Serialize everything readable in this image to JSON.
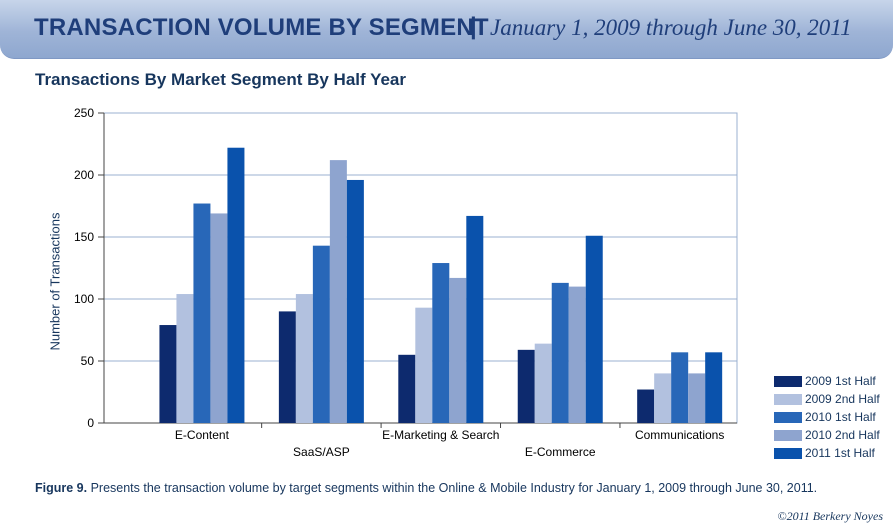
{
  "header": {
    "title": "TRANSACTION VOLUME BY SEGMENT",
    "separator": "|",
    "subtitle": "January 1, 2009 through  June 30, 2011"
  },
  "chart_data": {
    "type": "bar",
    "title": "Transactions By Market Segment By Half Year",
    "xlabel": "",
    "ylabel": "Number of Transactions",
    "ylim": [
      0,
      250
    ],
    "yticks": [
      "0",
      "50",
      "100",
      "150",
      "200",
      "250"
    ],
    "grid": true,
    "legend_position": "bottom-right",
    "categories": [
      "E-Content",
      "SaaS/ASP",
      "E-Marketing & Search",
      "E-Commerce",
      "Communications"
    ],
    "series": [
      {
        "name": "2009 1st Half",
        "color": "#0d2a6e",
        "values": [
          79,
          90,
          55,
          59,
          27
        ]
      },
      {
        "name": "2009 2nd Half",
        "color": "#b2c1df",
        "values": [
          104,
          104,
          93,
          64,
          40
        ]
      },
      {
        "name": "2010 1st Half",
        "color": "#2867b8",
        "values": [
          177,
          143,
          129,
          113,
          57
        ]
      },
      {
        "name": "2010 2nd Half",
        "color": "#8ea4cf",
        "values": [
          169,
          212,
          117,
          110,
          40
        ]
      },
      {
        "name": "2011 1st Half",
        "color": "#0a52ac",
        "values": [
          222,
          196,
          167,
          151,
          57
        ]
      }
    ]
  },
  "caption": {
    "figure_label": "Figure 9.",
    "text": "Presents the transaction volume by target segments within the Online & Mobile Industry for January 1, 2009 through June 30, 2011."
  },
  "copyright": "©2011 Berkery Noyes"
}
